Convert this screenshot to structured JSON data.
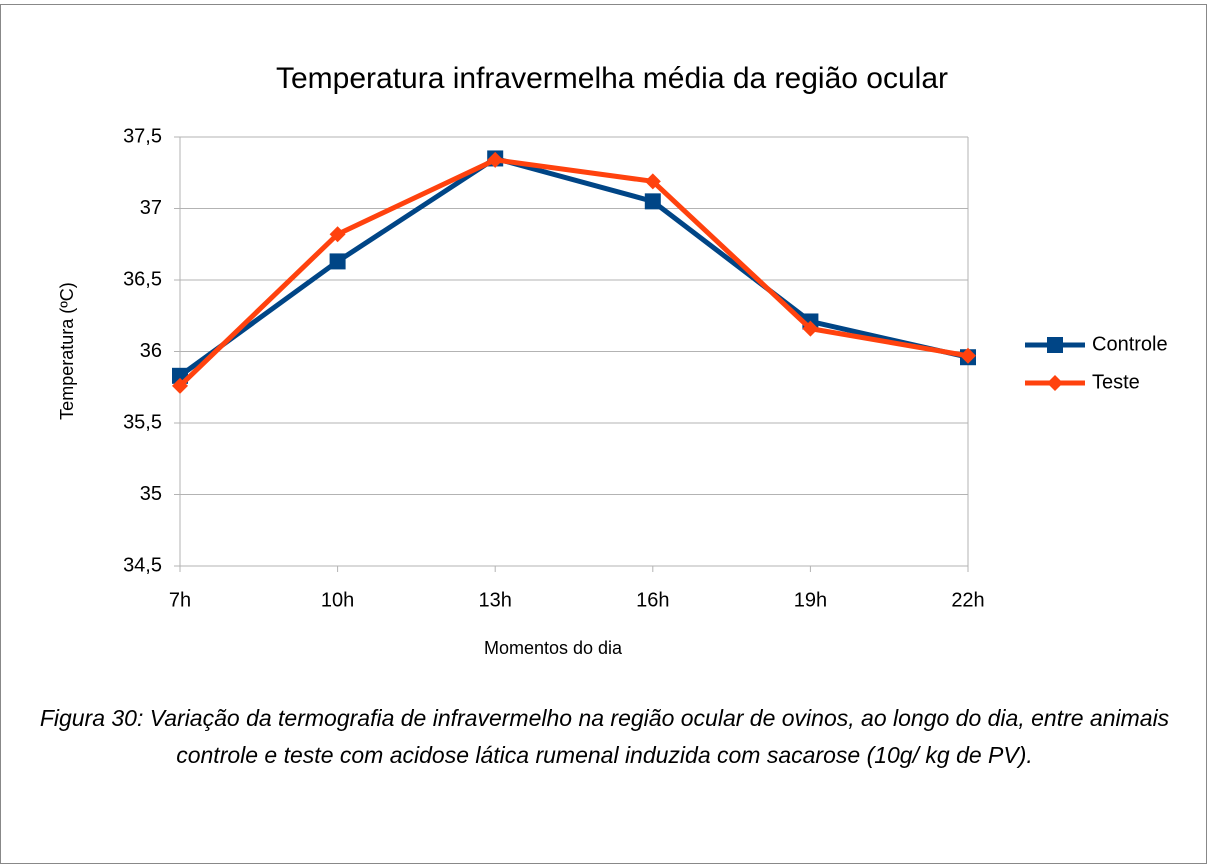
{
  "chart_data": {
    "type": "line",
    "title": "Temperatura infravermelha média da região ocular",
    "xlabel": "Momentos do dia",
    "ylabel": "Temperatura (ºC)",
    "categories": [
      "7h",
      "10h",
      "13h",
      "16h",
      "19h",
      "22h"
    ],
    "series": [
      {
        "name": "Controle",
        "color": "#004586",
        "marker": "square",
        "values": [
          35.83,
          36.63,
          37.35,
          37.05,
          36.21,
          35.96
        ]
      },
      {
        "name": "Teste",
        "color": "#ff420e",
        "marker": "diamond",
        "values": [
          35.76,
          36.82,
          37.34,
          37.19,
          36.16,
          35.97
        ]
      }
    ],
    "ylim": [
      34.5,
      37.5
    ],
    "yticks": [
      {
        "value": 34.5,
        "label": "34,5"
      },
      35,
      {
        "value": 35.5,
        "label": "35,5"
      },
      36,
      {
        "value": 36.5,
        "label": "36,5"
      },
      37,
      {
        "value": 37.5,
        "label": "37,5"
      }
    ],
    "grid": true,
    "legend": "right"
  },
  "caption": "Figura 30: Variação da termografia de infravermelho na região ocular de ovinos, ao longo do dia, entre animais controle e teste com acidose lática rumenal induzida com sacarose (10g/ kg de PV)."
}
